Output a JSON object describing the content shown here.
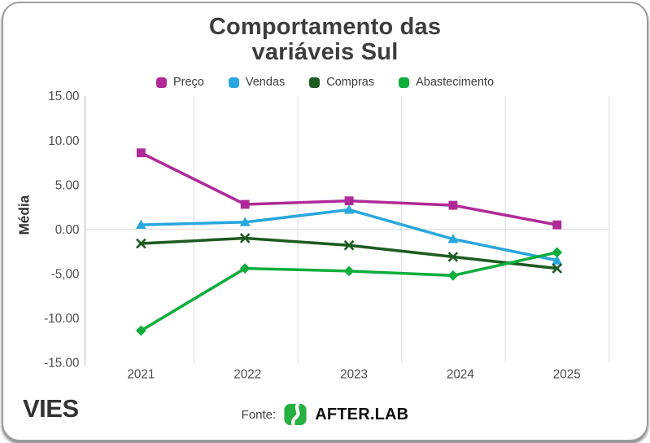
{
  "chart_data": {
    "type": "line",
    "title": "Comportamento das variáveis Sul",
    "ylabel": "Média",
    "xlabel": "",
    "ylim": [
      -15,
      15
    ],
    "y_ticks": [
      "15.00",
      "10.00",
      "5.00",
      "0.00",
      "-5,00",
      "-10.00",
      "-15.00"
    ],
    "categories": [
      "2021",
      "2022",
      "2023",
      "2024",
      "2025"
    ],
    "series": [
      {
        "name": "Preço",
        "color": "#b02a97",
        "marker": "square",
        "values": [
          8.6,
          2.8,
          3.2,
          2.7,
          0.5
        ]
      },
      {
        "name": "Vendas",
        "color": "#29a6dd",
        "marker": "triangle",
        "values": [
          0.5,
          0.8,
          2.2,
          -1.1,
          -3.5
        ]
      },
      {
        "name": "Compras",
        "color": "#1d5b20",
        "marker": "x",
        "values": [
          -1.6,
          -1.0,
          -1.8,
          -3.1,
          -4.4
        ]
      },
      {
        "name": "Abastecimento",
        "color": "#0ead3c",
        "marker": "diamond",
        "values": [
          -11.4,
          -4.4,
          -4.7,
          -5.2,
          -2.6
        ]
      }
    ],
    "grid": "vertical gridlines between years + zero line",
    "legend_position": "top"
  },
  "footer": {
    "brand": "VIES",
    "source_label": "Fonte:",
    "source_name": "AFTER.LAB",
    "source_logo_color": "#27b143"
  }
}
